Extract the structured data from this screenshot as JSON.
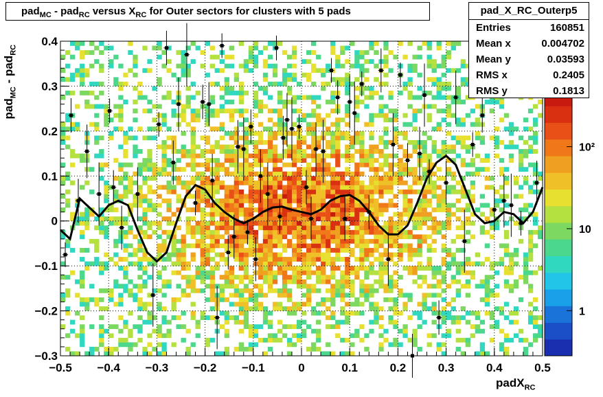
{
  "chart_data": {
    "type": "heatmap",
    "title": "pad_MC - pad_RC versus X_RC for Outer sectors for clusters with 5 pads",
    "title_parts": {
      "a": "pad",
      "a_sub": "MC",
      "b": " - pad",
      "b_sub": "RC",
      "c": " versus X",
      "c_sub": "RC",
      "d": " for Outer sectors for clusters with 5 pads"
    },
    "xlabel": "padX_RC",
    "xlabel_parts": {
      "main": "padX",
      "sub": "RC"
    },
    "ylabel": "pad_MC - pad_RC",
    "ylabel_parts": {
      "a": "pad",
      "a_sub": "MC",
      "b": " - pad",
      "b_sub": "RC"
    },
    "xlim": [
      -0.5,
      0.5
    ],
    "ylim": [
      -0.3,
      0.4
    ],
    "x_ticks": [
      -0.5,
      -0.4,
      -0.3,
      -0.2,
      -0.1,
      0,
      0.1,
      0.2,
      0.3,
      0.4,
      0.5
    ],
    "x_tick_labels": [
      "−0.5",
      "−0.4",
      "−0.3",
      "−0.2",
      "−0.1",
      "0",
      "0.1",
      "0.2",
      "0.3",
      "0.4",
      "0.5"
    ],
    "y_ticks": [
      -0.3,
      -0.2,
      -0.1,
      0,
      0.1,
      0.2,
      0.3,
      0.4
    ],
    "y_tick_labels": [
      "−0.3",
      "−0.2",
      "−0.1",
      "0",
      "0.1",
      "0.2",
      "0.3",
      "0.4"
    ],
    "grid": true,
    "colorbar": {
      "scale": "log",
      "labels": [
        "1",
        "10",
        "10²"
      ],
      "label_values": [
        1,
        10,
        100
      ]
    },
    "profile_points": [
      {
        "x": -0.49,
        "y": -0.075
      },
      {
        "x": -0.478,
        "y": 0.235
      },
      {
        "x": -0.463,
        "y": 0.045
      },
      {
        "x": -0.445,
        "y": 0.155
      },
      {
        "x": -0.42,
        "y": 0.06
      },
      {
        "x": -0.398,
        "y": 0.245
      },
      {
        "x": -0.39,
        "y": 0.075
      },
      {
        "x": -0.373,
        "y": -0.015
      },
      {
        "x": -0.34,
        "y": 0.06
      },
      {
        "x": -0.308,
        "y": -0.165
      },
      {
        "x": -0.296,
        "y": 0.215
      },
      {
        "x": -0.28,
        "y": 0.385
      },
      {
        "x": -0.266,
        "y": 0.13
      },
      {
        "x": -0.255,
        "y": 0.26
      },
      {
        "x": -0.238,
        "y": 0.37
      },
      {
        "x": -0.22,
        "y": 0.04
      },
      {
        "x": -0.205,
        "y": 0.265
      },
      {
        "x": -0.192,
        "y": 0.26
      },
      {
        "x": -0.185,
        "y": 0.09
      },
      {
        "x": -0.175,
        "y": -0.215
      },
      {
        "x": -0.165,
        "y": 0.39
      },
      {
        "x": -0.152,
        "y": -0.07
      },
      {
        "x": -0.14,
        "y": -0.035
      },
      {
        "x": -0.132,
        "y": 0.165
      },
      {
        "x": -0.12,
        "y": 0.16
      },
      {
        "x": -0.112,
        "y": -0.025
      },
      {
        "x": -0.105,
        "y": 0.21
      },
      {
        "x": -0.095,
        "y": -0.085
      },
      {
        "x": -0.085,
        "y": 0.1
      },
      {
        "x": -0.07,
        "y": 0.06
      },
      {
        "x": -0.052,
        "y": 0.385
      },
      {
        "x": -0.045,
        "y": 0.01
      },
      {
        "x": -0.038,
        "y": 0.185
      },
      {
        "x": -0.03,
        "y": 0.225
      },
      {
        "x": -0.02,
        "y": 0.205
      },
      {
        "x": -0.005,
        "y": 0.21
      },
      {
        "x": 0.01,
        "y": 0.075
      },
      {
        "x": 0.02,
        "y": 0.005
      },
      {
        "x": 0.03,
        "y": 0.16
      },
      {
        "x": 0.045,
        "y": 0.155
      },
      {
        "x": 0.062,
        "y": 0.335
      },
      {
        "x": 0.075,
        "y": 0.275
      },
      {
        "x": 0.09,
        "y": 0.005
      },
      {
        "x": 0.1,
        "y": 0.265
      },
      {
        "x": 0.11,
        "y": 0.24
      },
      {
        "x": 0.125,
        "y": 0.305
      },
      {
        "x": 0.14,
        "y": 0.02
      },
      {
        "x": 0.165,
        "y": 0.335
      },
      {
        "x": 0.18,
        "y": -0.085
      },
      {
        "x": 0.19,
        "y": 0.17
      },
      {
        "x": 0.205,
        "y": 0.325
      },
      {
        "x": 0.22,
        "y": 0.135
      },
      {
        "x": 0.23,
        "y": -0.3
      },
      {
        "x": 0.245,
        "y": 0.15
      },
      {
        "x": 0.255,
        "y": 0.28
      },
      {
        "x": 0.265,
        "y": 0.11
      },
      {
        "x": 0.285,
        "y": -0.215
      },
      {
        "x": 0.3,
        "y": 0.085
      },
      {
        "x": 0.32,
        "y": 0.275
      },
      {
        "x": 0.338,
        "y": -0.045
      },
      {
        "x": 0.355,
        "y": 0.17
      },
      {
        "x": 0.375,
        "y": 0.235
      },
      {
        "x": 0.4,
        "y": 0.025
      },
      {
        "x": 0.42,
        "y": 0.045
      },
      {
        "x": 0.435,
        "y": 0.035
      },
      {
        "x": 0.455,
        "y": -0.005
      },
      {
        "x": 0.47,
        "y": 0.36
      },
      {
        "x": 0.488,
        "y": 0.085
      }
    ],
    "fit_curve": {
      "x": [
        -0.5,
        -0.48,
        -0.46,
        -0.44,
        -0.42,
        -0.4,
        -0.38,
        -0.36,
        -0.34,
        -0.32,
        -0.3,
        -0.28,
        -0.26,
        -0.24,
        -0.22,
        -0.2,
        -0.18,
        -0.16,
        -0.14,
        -0.12,
        -0.1,
        -0.08,
        -0.06,
        -0.04,
        -0.02,
        0,
        0.02,
        0.04,
        0.06,
        0.08,
        0.1,
        0.12,
        0.14,
        0.16,
        0.18,
        0.2,
        0.22,
        0.24,
        0.26,
        0.28,
        0.3,
        0.32,
        0.34,
        0.36,
        0.38,
        0.4,
        0.42,
        0.44,
        0.46,
        0.48,
        0.5
      ],
      "y": [
        -0.02,
        -0.04,
        0.05,
        0.03,
        0.01,
        0.035,
        0.045,
        0.035,
        -0.02,
        -0.07,
        -0.09,
        -0.07,
        -0.005,
        0.055,
        0.08,
        0.07,
        0.04,
        0.02,
        0.005,
        -0.005,
        0.005,
        0.02,
        0.03,
        0.032,
        0.025,
        0.02,
        0.015,
        0.025,
        0.045,
        0.055,
        0.058,
        0.045,
        0.02,
        -0.01,
        -0.03,
        -0.03,
        -0.01,
        0.04,
        0.095,
        0.13,
        0.145,
        0.125,
        0.07,
        0.015,
        -0.005,
        0.0,
        0.02,
        0.015,
        -0.005,
        0.02,
        0.075
      ]
    }
  },
  "stats": {
    "name": "pad_X_RC_Outerp5",
    "rows": [
      {
        "label": "Entries",
        "value": "160851"
      },
      {
        "label": "Mean x",
        "value": "0.004702"
      },
      {
        "label": "Mean y",
        "value": "0.03593"
      },
      {
        "label": "RMS x",
        "value": "0.2405"
      },
      {
        "label": "RMS y",
        "value": "0.1813"
      }
    ]
  },
  "palette": [
    "#1a2fb0",
    "#1a4fc8",
    "#1a73d8",
    "#1aa0e8",
    "#22c4e8",
    "#30d8c0",
    "#4cd88c",
    "#7cd860",
    "#b4e040",
    "#e8e030",
    "#f0c028",
    "#f0a020",
    "#f07818",
    "#e85018",
    "#d83010",
    "#c81a0e"
  ]
}
